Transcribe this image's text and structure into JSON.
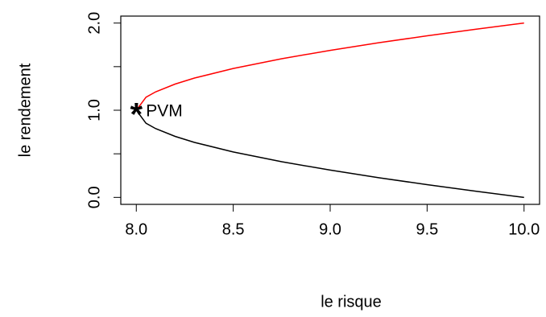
{
  "chart_data": {
    "type": "line",
    "x_label": "le risque",
    "y_label": "le rendement",
    "x": [
      8,
      8.05,
      8.1,
      8.2,
      8.3,
      8.5,
      8.75,
      9,
      9.25,
      9.5,
      9.75,
      10
    ],
    "series": [
      {
        "color": "#ff0000",
        "values": [
          1,
          1.149,
          1.211,
          1.3,
          1.369,
          1.479,
          1.591,
          1.687,
          1.774,
          1.854,
          1.929,
          2
        ]
      },
      {
        "color": "#000000",
        "values": [
          1,
          0.851,
          0.789,
          0.7,
          0.631,
          0.521,
          0.409,
          0.313,
          0.226,
          0.146,
          0.071,
          0
        ]
      }
    ],
    "annotations": [
      {
        "x": 8,
        "y": 1,
        "marker": "*",
        "text": "PVM"
      }
    ],
    "xlim": [
      7.92,
      10.08
    ],
    "ylim": [
      -0.08,
      2.08
    ],
    "xticks": [
      {
        "value": 8,
        "label": "8.0"
      },
      8.5,
      {
        "value": 9,
        "label": "9.0"
      },
      9.5,
      {
        "value": 10,
        "label": "10.0"
      }
    ],
    "yticks": [
      {
        "value": 0,
        "label": "0.0"
      },
      {
        "value": 0.5,
        "label": null
      },
      {
        "value": 1,
        "label": "1.0"
      },
      {
        "value": 1.5,
        "label": null
      },
      {
        "value": 2,
        "label": "2.0"
      }
    ],
    "grid": false
  }
}
